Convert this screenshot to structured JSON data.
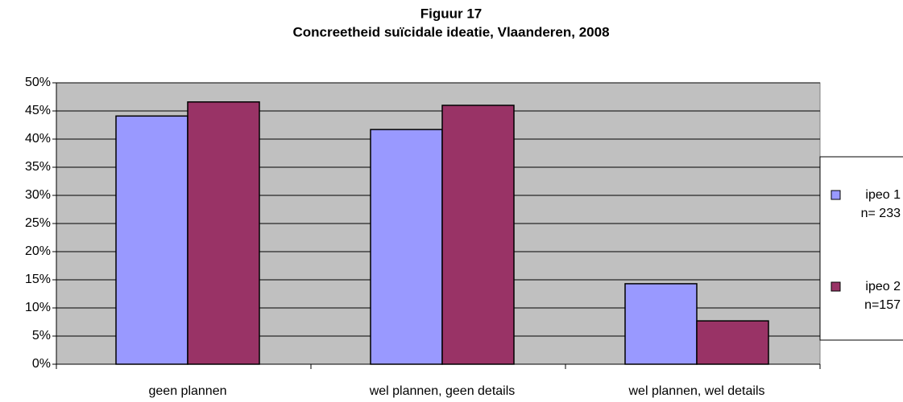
{
  "chart_data": {
    "type": "bar",
    "title": "Figuur 17",
    "subtitle": "Concreetheid suïcidale ideatie, Vlaanderen, 2008",
    "categories": [
      "geen plannen",
      "wel plannen, geen details",
      "wel plannen, wel details"
    ],
    "series": [
      {
        "name": "ipeo 1\nn= 233",
        "color": "#9999ff",
        "values": [
          44.1,
          41.7,
          14.3
        ]
      },
      {
        "name": "ipeo 2\nn=157",
        "color": "#993366",
        "values": [
          46.6,
          46.0,
          7.7
        ]
      }
    ],
    "ylim": [
      0,
      50
    ],
    "yticks": [
      {
        "value": 0,
        "label": "0%"
      },
      {
        "value": 5,
        "label": "5%"
      },
      {
        "value": 10,
        "label": "10%"
      },
      {
        "value": 15,
        "label": "15%"
      },
      {
        "value": 20,
        "label": "20%"
      },
      {
        "value": 25,
        "label": "25%"
      },
      {
        "value": 30,
        "label": "30%"
      },
      {
        "value": 35,
        "label": "35%"
      },
      {
        "value": 40,
        "label": "40%"
      },
      {
        "value": 45,
        "label": "45%"
      },
      {
        "value": 50,
        "label": "50%"
      }
    ],
    "grid": true,
    "legend": "right"
  }
}
